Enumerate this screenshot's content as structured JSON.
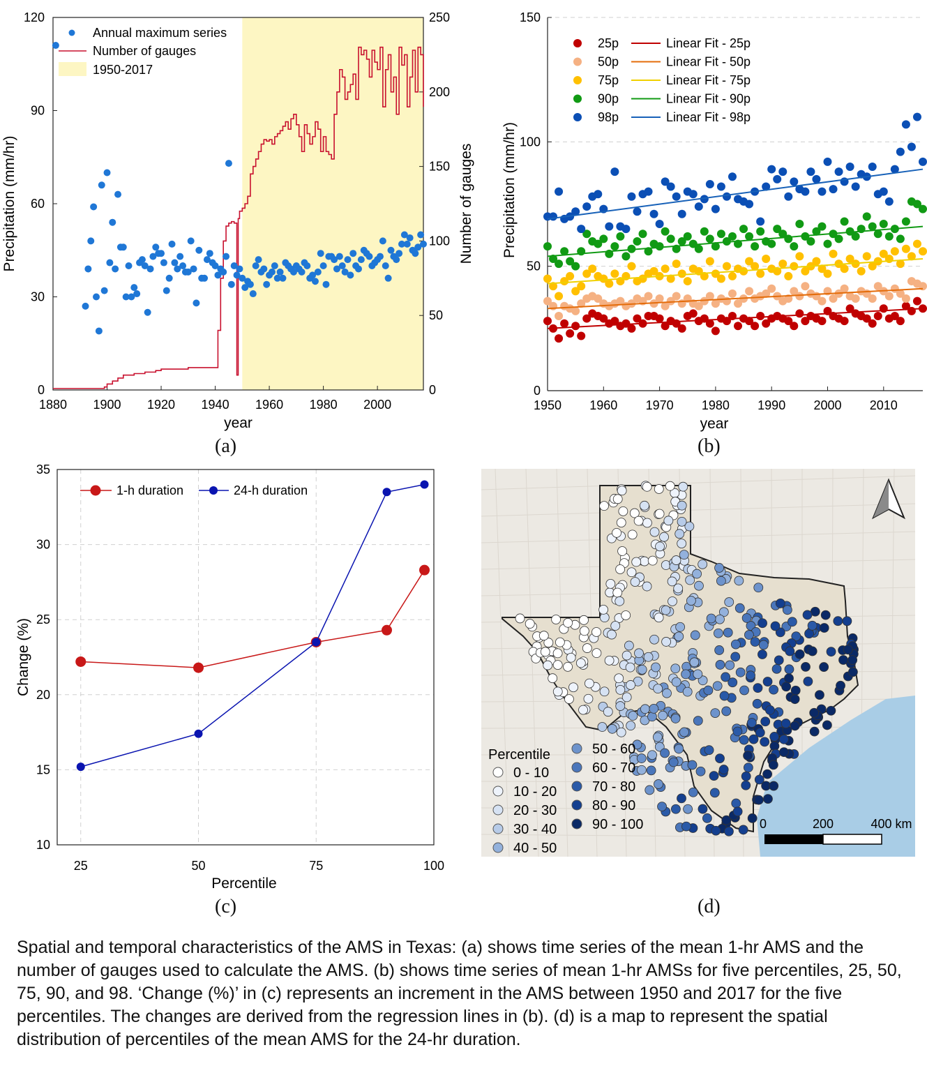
{
  "colors": {
    "blue_dots": "#1f77d6",
    "red_line": "#c8102e",
    "highlight": "#fdf6c3",
    "p25": "#c00000",
    "p50": "#f5b183",
    "p75": "#ffc000",
    "p90": "#119a14",
    "p98": "#0b4fb5",
    "fit25": "#c00000",
    "fit50": "#e46c0a",
    "fit75": "#f0d000",
    "fit90": "#119a14",
    "fit98": "#1761b8",
    "c1h": "#c81818",
    "c24h": "#0a14b0"
  },
  "panels": {
    "a": "(a)",
    "b": "(b)",
    "c": "(c)",
    "d": "(d)"
  },
  "chart_data": [
    {
      "type": "scatter",
      "panel": "(a)",
      "xlabel": "year",
      "ylabel": "Precipitation (mm/hr)",
      "ylabel2": "Number of gauges",
      "xlim": [
        1880,
        2017
      ],
      "ylim": [
        0,
        120
      ],
      "ylim2": [
        0,
        250
      ],
      "xticks": [
        "1880",
        "1900",
        "1920",
        "1940",
        "1960",
        "1980",
        "2000"
      ],
      "yticks": [
        "0",
        "30",
        "60",
        "90",
        "120"
      ],
      "y2ticks": [
        "0",
        "50",
        "100",
        "150",
        "200",
        "250"
      ],
      "legend": [
        "Annual maximum series",
        "Number of gauges",
        "1950-2017"
      ],
      "legend_position": "top-left",
      "highlight_range": [
        1950,
        2017
      ],
      "ams": {
        "x": [
          1881,
          1892,
          1893,
          1894,
          1895,
          1896,
          1897,
          1898,
          1899,
          1900,
          1901,
          1902,
          1903,
          1904,
          1905,
          1906,
          1907,
          1908,
          1909,
          1910,
          1911,
          1912,
          1913,
          1914,
          1915,
          1916,
          1917,
          1918,
          1919,
          1920,
          1921,
          1922,
          1923,
          1924,
          1925,
          1926,
          1927,
          1928,
          1929,
          1930,
          1931,
          1932,
          1933,
          1934,
          1935,
          1936,
          1937,
          1938,
          1939,
          1940,
          1941,
          1942,
          1943,
          1944,
          1945,
          1946,
          1947,
          1948,
          1949,
          1950,
          1951,
          1952,
          1953,
          1954,
          1955,
          1956,
          1957,
          1958,
          1959,
          1960,
          1961,
          1962,
          1963,
          1964,
          1965,
          1966,
          1967,
          1968,
          1969,
          1970,
          1971,
          1972,
          1973,
          1974,
          1975,
          1976,
          1977,
          1978,
          1979,
          1980,
          1981,
          1982,
          1983,
          1984,
          1985,
          1986,
          1987,
          1988,
          1989,
          1990,
          1991,
          1992,
          1993,
          1994,
          1995,
          1996,
          1997,
          1998,
          1999,
          2000,
          2001,
          2002,
          2003,
          2004,
          2005,
          2006,
          2007,
          2008,
          2009,
          2010,
          2011,
          2012,
          2013,
          2014,
          2015,
          2016,
          2017
        ],
        "y": [
          111,
          27,
          39,
          48,
          59,
          30,
          19,
          66,
          32,
          70,
          41,
          54,
          39,
          63,
          46,
          46,
          30,
          40,
          30,
          33,
          31,
          41,
          42,
          40,
          25,
          39,
          43,
          46,
          44,
          44,
          41,
          32,
          36,
          47,
          41,
          39,
          43,
          40,
          38,
          38,
          48,
          39,
          28,
          45,
          36,
          36,
          42,
          44,
          41,
          40,
          37,
          39,
          38,
          43,
          73,
          34,
          40,
          37,
          39,
          36,
          33,
          35,
          34,
          31,
          40,
          42,
          38,
          39,
          34,
          37,
          38,
          40,
          36,
          38,
          36,
          41,
          40,
          39,
          38,
          40,
          39,
          38,
          41,
          40,
          36,
          37,
          35,
          38,
          44,
          40,
          34,
          43,
          43,
          42,
          39,
          43,
          40,
          38,
          42,
          37,
          44,
          40,
          39,
          42,
          45,
          44,
          43,
          40,
          41,
          42,
          43,
          48,
          40,
          36,
          45,
          43,
          42,
          44,
          47,
          50,
          47,
          49,
          45,
          44,
          46,
          50,
          47
        ]
      },
      "gauges": {
        "x": [
          1880,
          1898,
          1899,
          1900,
          1902,
          1904,
          1906,
          1910,
          1914,
          1918,
          1920,
          1925,
          1930,
          1932,
          1935,
          1940,
          1941,
          1942,
          1943,
          1944,
          1945,
          1946,
          1947,
          1948,
          1948.5,
          1949,
          1950,
          1951,
          1952,
          1953,
          1954,
          1955,
          1956,
          1957,
          1958,
          1959,
          1960,
          1961,
          1962,
          1963,
          1964,
          1965,
          1966,
          1967,
          1968,
          1969,
          1970,
          1971,
          1972,
          1973,
          1974,
          1975,
          1976,
          1977,
          1978,
          1979,
          1980,
          1981,
          1982,
          1983,
          1984,
          1985,
          1986,
          1987,
          1988,
          1989,
          1990,
          1991,
          1992,
          1993,
          1994,
          1995,
          1996,
          1997,
          1998,
          1999,
          2000,
          2001,
          2002,
          2003,
          2004,
          2005,
          2006,
          2007,
          2008,
          2009,
          2010,
          2011,
          2012,
          2013,
          2014,
          2015,
          2016,
          2017
        ],
        "y": [
          1,
          1,
          2,
          4,
          6,
          8,
          10,
          11,
          12,
          13,
          14,
          14,
          15,
          15,
          15,
          15,
          40,
          75,
          100,
          110,
          112,
          113,
          112,
          10,
          115,
          120,
          122,
          125,
          130,
          145,
          150,
          155,
          160,
          165,
          168,
          167,
          168,
          165,
          170,
          172,
          174,
          177,
          180,
          175,
          182,
          185,
          178,
          170,
          160,
          178,
          172,
          165,
          170,
          180,
          175,
          160,
          170,
          160,
          158,
          155,
          185,
          200,
          215,
          210,
          195,
          200,
          205,
          212,
          195,
          230,
          225,
          228,
          222,
          210,
          228,
          220,
          215,
          230,
          190,
          215,
          225,
          200,
          210,
          185,
          230,
          218,
          225,
          190,
          210,
          228,
          200,
          230,
          225,
          190
        ]
      }
    },
    {
      "type": "scatter",
      "panel": "(b)",
      "xlabel": "year",
      "ylabel": "Precipitation (mm/hr)",
      "xlim": [
        1950,
        2017
      ],
      "ylim": [
        0,
        150
      ],
      "xticks": [
        "1950",
        "1960",
        "1970",
        "1980",
        "1990",
        "2000",
        "2010"
      ],
      "yticks": [
        "0",
        "50",
        "100",
        "150"
      ],
      "legend_position": "top-left",
      "years_start": 1950,
      "series": [
        {
          "name": "25p",
          "fit_name": "Linear Fit - 25p",
          "fit": [
            25,
            33
          ],
          "values": [
            28,
            25,
            21,
            27,
            23,
            26,
            22,
            29,
            31,
            30,
            29,
            27,
            28,
            26,
            27,
            25,
            29,
            27,
            30,
            30,
            29,
            26,
            28,
            27,
            25,
            30,
            31,
            28,
            29,
            27,
            24,
            29,
            28,
            30,
            26,
            29,
            28,
            26,
            30,
            27,
            29,
            30,
            29,
            28,
            26,
            31,
            28,
            30,
            29,
            28,
            32,
            30,
            29,
            28,
            33,
            31,
            30,
            29,
            27,
            30,
            33,
            29,
            30,
            28,
            34,
            32,
            36,
            33
          ]
        },
        {
          "name": "50p",
          "fit_name": "Linear Fit - 50p",
          "fit": [
            33,
            41
          ],
          "values": [
            36,
            34,
            30,
            34,
            33,
            32,
            35,
            37,
            38,
            37,
            35,
            34,
            35,
            36,
            34,
            35,
            37,
            36,
            38,
            35,
            37,
            34,
            36,
            38,
            35,
            37,
            35,
            34,
            36,
            38,
            35,
            37,
            36,
            39,
            35,
            37,
            40,
            37,
            38,
            39,
            41,
            38,
            36,
            37,
            40,
            38,
            42,
            39,
            38,
            36,
            40,
            37,
            39,
            41,
            38,
            37,
            40,
            39,
            37,
            42,
            40,
            38,
            41,
            39,
            37,
            44,
            43,
            42
          ]
        },
        {
          "name": "75p",
          "fit_name": "Linear Fit - 75p",
          "fit": [
            43,
            53
          ],
          "values": [
            45,
            42,
            38,
            44,
            46,
            40,
            42,
            47,
            49,
            46,
            45,
            43,
            47,
            44,
            46,
            50,
            44,
            45,
            47,
            48,
            46,
            49,
            45,
            51,
            47,
            44,
            49,
            48,
            46,
            52,
            47,
            45,
            50,
            46,
            49,
            48,
            52,
            50,
            47,
            53,
            49,
            48,
            51,
            46,
            50,
            54,
            48,
            50,
            52,
            49,
            47,
            55,
            51,
            49,
            53,
            51,
            48,
            54,
            50,
            52,
            55,
            53,
            56,
            51,
            57,
            54,
            59,
            56
          ]
        },
        {
          "name": "90p",
          "fit_name": "Linear Fit - 90p",
          "fit": [
            54,
            66
          ],
          "values": [
            58,
            53,
            51,
            56,
            52,
            50,
            56,
            63,
            60,
            59,
            61,
            55,
            58,
            62,
            54,
            57,
            60,
            63,
            56,
            59,
            58,
            64,
            61,
            57,
            60,
            62,
            59,
            57,
            64,
            61,
            58,
            63,
            60,
            62,
            59,
            65,
            62,
            58,
            64,
            60,
            59,
            65,
            63,
            61,
            58,
            67,
            62,
            60,
            64,
            66,
            59,
            63,
            61,
            68,
            64,
            62,
            65,
            70,
            66,
            63,
            67,
            62,
            65,
            61,
            68,
            76,
            75,
            73
          ]
        },
        {
          "name": "98p",
          "fit_name": "Linear Fit - 98p",
          "fit": [
            69,
            89
          ],
          "values": [
            70,
            70,
            80,
            69,
            70,
            72,
            65,
            74,
            78,
            79,
            73,
            66,
            88,
            66,
            65,
            78,
            72,
            79,
            80,
            71,
            67,
            84,
            82,
            78,
            71,
            80,
            79,
            74,
            77,
            83,
            73,
            82,
            78,
            86,
            77,
            76,
            75,
            80,
            68,
            82,
            89,
            85,
            88,
            78,
            84,
            81,
            80,
            88,
            85,
            80,
            92,
            81,
            88,
            84,
            90,
            82,
            87,
            86,
            90,
            79,
            80,
            76,
            89,
            96,
            107,
            98,
            110,
            92
          ]
        }
      ]
    },
    {
      "type": "line",
      "panel": "(c)",
      "xlabel": "Percentile",
      "ylabel": "Change (%)",
      "xlim": [
        20,
        100
      ],
      "ylim": [
        10,
        35
      ],
      "xticks": [
        "25",
        "50",
        "75",
        "100"
      ],
      "yticks": [
        "10",
        "15",
        "20",
        "25",
        "30",
        "35"
      ],
      "legend_position": "top-left",
      "x": [
        25,
        50,
        75,
        90,
        98
      ],
      "series": [
        {
          "name": "1-h duration",
          "values": [
            22.2,
            21.8,
            23.5,
            24.3,
            28.3
          ]
        },
        {
          "name": "24-h duration",
          "values": [
            15.2,
            17.4,
            23.5,
            33.5,
            34.0
          ]
        }
      ]
    }
  ],
  "map": {
    "legend_title": "Percentile",
    "legend_items": [
      "0 - 10",
      "10 - 20",
      "20 - 30",
      "30 - 40",
      "40 - 50",
      "50 - 60",
      "60 - 70",
      "70 - 80",
      "80 - 90",
      "90 - 100"
    ],
    "legend_colors": [
      "#ffffff",
      "#eef3fb",
      "#d6e2f3",
      "#b7cbe8",
      "#93b1dc",
      "#6d93cc",
      "#4a76bb",
      "#2a5aa8",
      "#143f8f",
      "#0a2966"
    ],
    "scale_labels": [
      "0",
      "200",
      "400 km"
    ],
    "north_arrow": "north-arrow-icon"
  },
  "caption": "Spatial and temporal characteristics of the AMS in Texas: (a) shows time series of the mean 1-hr AMS and the number of gauges used to calculate the AMS. (b) shows time series of mean 1-hr AMSs for five percentiles, 25, 50, 75, 90, and 98. ‘Change (%)’ in (c) represents an increment in the AMS between 1950 and 2017 for the five percentiles. The changes are derived from the regression lines in (b). (d) is a map to represent the spatial distribution of percentiles of the mean AMS for the 24-hr duration."
}
